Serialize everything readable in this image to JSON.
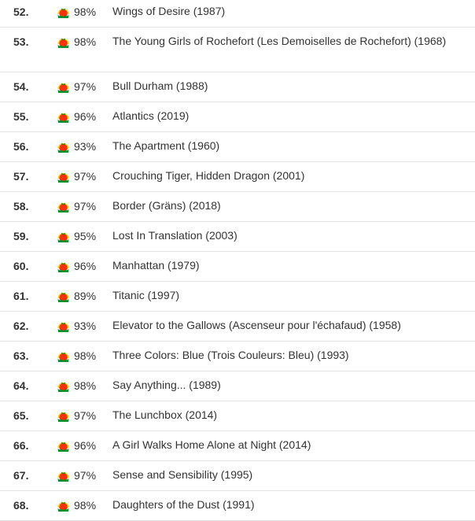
{
  "rows": [
    {
      "rank": "52.",
      "score": "98%",
      "title": "Wings of Desire (1987)",
      "meter_icon": "certified-fresh-tomato-icon"
    },
    {
      "rank": "53.",
      "score": "98%",
      "title": "The Young Girls of Rochefort (Les Demoiselles de Rochefort) (1968)",
      "meter_icon": "certified-fresh-tomato-icon"
    },
    {
      "rank": "54.",
      "score": "97%",
      "title": "Bull Durham (1988)",
      "meter_icon": "certified-fresh-tomato-icon"
    },
    {
      "rank": "55.",
      "score": "96%",
      "title": "Atlantics (2019)",
      "meter_icon": "certified-fresh-tomato-icon"
    },
    {
      "rank": "56.",
      "score": "93%",
      "title": "The Apartment (1960)",
      "meter_icon": "certified-fresh-tomato-icon"
    },
    {
      "rank": "57.",
      "score": "97%",
      "title": "Crouching Tiger, Hidden Dragon (2001)",
      "meter_icon": "certified-fresh-tomato-icon"
    },
    {
      "rank": "58.",
      "score": "97%",
      "title": "Border (Gräns) (2018)",
      "meter_icon": "certified-fresh-tomato-icon"
    },
    {
      "rank": "59.",
      "score": "95%",
      "title": "Lost In Translation (2003)",
      "meter_icon": "certified-fresh-tomato-icon"
    },
    {
      "rank": "60.",
      "score": "96%",
      "title": "Manhattan (1979)",
      "meter_icon": "certified-fresh-tomato-icon"
    },
    {
      "rank": "61.",
      "score": "89%",
      "title": "Titanic (1997)",
      "meter_icon": "certified-fresh-tomato-icon"
    },
    {
      "rank": "62.",
      "score": "93%",
      "title": "Elevator to the Gallows (Ascenseur pour l'échafaud) (1958)",
      "meter_icon": "certified-fresh-tomato-icon"
    },
    {
      "rank": "63.",
      "score": "98%",
      "title": "Three Colors: Blue (Trois Couleurs: Bleu) (1993)",
      "meter_icon": "certified-fresh-tomato-icon"
    },
    {
      "rank": "64.",
      "score": "98%",
      "title": "Say Anything... (1989)",
      "meter_icon": "certified-fresh-tomato-icon"
    },
    {
      "rank": "65.",
      "score": "97%",
      "title": "The Lunchbox (2014)",
      "meter_icon": "certified-fresh-tomato-icon"
    },
    {
      "rank": "66.",
      "score": "96%",
      "title": "A Girl Walks Home Alone at Night (2014)",
      "meter_icon": "certified-fresh-tomato-icon"
    },
    {
      "rank": "67.",
      "score": "97%",
      "title": "Sense and Sensibility (1995)",
      "meter_icon": "certified-fresh-tomato-icon"
    },
    {
      "rank": "68.",
      "score": "98%",
      "title": "Daughters of the Dust (1991)",
      "meter_icon": "certified-fresh-tomato-icon"
    }
  ],
  "colors": {
    "tomato_red": "#f93208",
    "tomato_yellow": "#ffd700",
    "leaf_green": "#00912d",
    "divider": "#e3e3e3",
    "text": "#333333"
  }
}
